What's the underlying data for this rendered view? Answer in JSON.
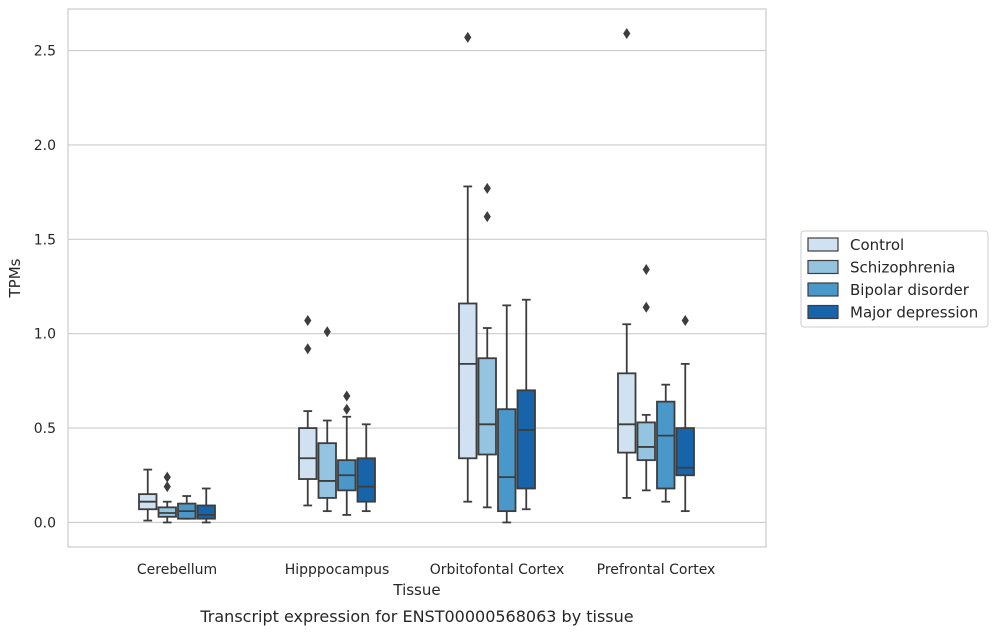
{
  "chart_data": {
    "type": "box",
    "xlabel": "Tissue",
    "ylabel": "TPMs",
    "caption": "Transcript expression for ENST00000568063 by tissue",
    "ylim": [
      -0.13,
      2.72
    ],
    "yticks": [
      "0.0",
      "0.5",
      "1.0",
      "1.5",
      "2.0",
      "2.5"
    ],
    "ytick_values": [
      0.0,
      0.5,
      1.0,
      1.5,
      2.0,
      2.5
    ],
    "grid": "horizontal",
    "legend_position": "right",
    "categories": [
      "Cerebellum",
      "Hipppocampus",
      "Orbitofontal Cortex",
      "Prefrontal Cortex"
    ],
    "series": [
      {
        "name": "Control",
        "color": "#d0e1f2",
        "boxes": [
          {
            "whislo": 0.01,
            "q1": 0.07,
            "med": 0.11,
            "q3": 0.15,
            "whishi": 0.28,
            "fliers": []
          },
          {
            "whislo": 0.09,
            "q1": 0.23,
            "med": 0.34,
            "q3": 0.5,
            "whishi": 0.59,
            "fliers": [
              1.07,
              0.92
            ]
          },
          {
            "whislo": 0.11,
            "q1": 0.34,
            "med": 0.84,
            "q3": 1.16,
            "whishi": 1.78,
            "fliers": [
              2.57
            ]
          },
          {
            "whislo": 0.13,
            "q1": 0.37,
            "med": 0.52,
            "q3": 0.79,
            "whishi": 1.05,
            "fliers": [
              2.59
            ]
          }
        ]
      },
      {
        "name": "Schizophrenia",
        "color": "#94c4df",
        "boxes": [
          {
            "whislo": 0.0,
            "q1": 0.03,
            "med": 0.05,
            "q3": 0.08,
            "whishi": 0.11,
            "fliers": [
              0.24,
              0.19
            ]
          },
          {
            "whislo": 0.06,
            "q1": 0.13,
            "med": 0.22,
            "q3": 0.42,
            "whishi": 0.54,
            "fliers": [
              1.01
            ]
          },
          {
            "whislo": 0.08,
            "q1": 0.36,
            "med": 0.52,
            "q3": 0.87,
            "whishi": 1.03,
            "fliers": [
              1.77,
              1.62
            ]
          },
          {
            "whislo": 0.17,
            "q1": 0.33,
            "med": 0.4,
            "q3": 0.53,
            "whishi": 0.57,
            "fliers": [
              1.34,
              1.14
            ]
          }
        ]
      },
      {
        "name": "Bipolar disorder",
        "color": "#4a98c9",
        "boxes": [
          {
            "whislo": 0.02,
            "q1": 0.02,
            "med": 0.06,
            "q3": 0.1,
            "whishi": 0.14,
            "fliers": []
          },
          {
            "whislo": 0.04,
            "q1": 0.17,
            "med": 0.25,
            "q3": 0.33,
            "whishi": 0.56,
            "fliers": [
              0.67,
              0.6
            ]
          },
          {
            "whislo": 0.0,
            "q1": 0.06,
            "med": 0.24,
            "q3": 0.6,
            "whishi": 1.15,
            "fliers": []
          },
          {
            "whislo": 0.11,
            "q1": 0.18,
            "med": 0.46,
            "q3": 0.64,
            "whishi": 0.73,
            "fliers": []
          }
        ]
      },
      {
        "name": "Major depression",
        "color": "#1764ab",
        "boxes": [
          {
            "whislo": 0.0,
            "q1": 0.02,
            "med": 0.04,
            "q3": 0.09,
            "whishi": 0.18,
            "fliers": []
          },
          {
            "whislo": 0.06,
            "q1": 0.11,
            "med": 0.19,
            "q3": 0.34,
            "whishi": 0.52,
            "fliers": []
          },
          {
            "whislo": 0.07,
            "q1": 0.18,
            "med": 0.49,
            "q3": 0.7,
            "whishi": 1.18,
            "fliers": []
          },
          {
            "whislo": 0.06,
            "q1": 0.25,
            "med": 0.29,
            "q3": 0.5,
            "whishi": 0.84,
            "fliers": [
              1.07
            ]
          }
        ]
      }
    ]
  }
}
